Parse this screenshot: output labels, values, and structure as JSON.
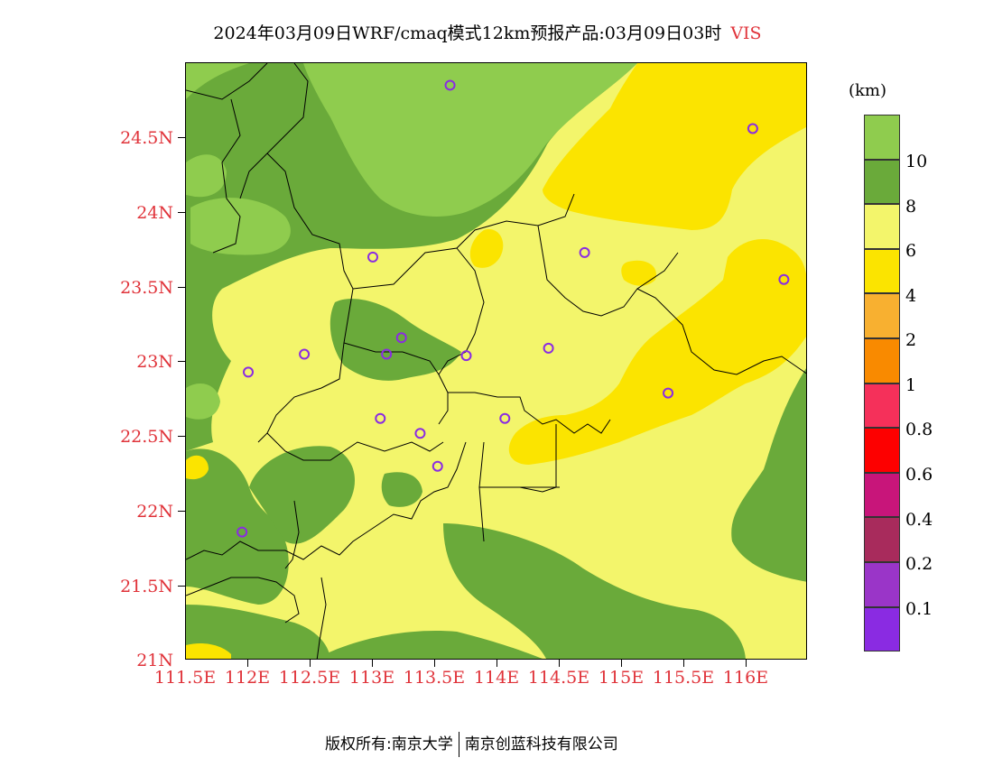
{
  "title": {
    "main": "2024年03月09日WRF/cmaq模式12km预报产品:03月09日03时",
    "variable": "VIS"
  },
  "axes": {
    "y_ticks": [
      "24.5N",
      "24N",
      "23.5N",
      "23N",
      "22.5N",
      "22N",
      "21.5N",
      "21N"
    ],
    "x_ticks": [
      "111.5E",
      "112E",
      "112.5E",
      "113E",
      "113.5E",
      "114E",
      "114.5E",
      "115E",
      "115.5E",
      "116E"
    ]
  },
  "legend": {
    "unit": "(km)",
    "labels": [
      "10",
      "8",
      "6",
      "4",
      "2",
      "1",
      "0.8",
      "0.6",
      "0.4",
      "0.2",
      "0.1"
    ],
    "colors": [
      "#8fcc4e",
      "#6aaa3a",
      "#f3f56b",
      "#fbe400",
      "#f8b030",
      "#f98a00",
      "#f5305a",
      "#fd0000",
      "#c8157a",
      "#a82b5c",
      "#9a35c8",
      "#8a2be2"
    ]
  },
  "stations": [
    {
      "lon": 113.62,
      "lat": 24.85
    },
    {
      "lon": 116.05,
      "lat": 24.56
    },
    {
      "lon": 113.0,
      "lat": 23.7
    },
    {
      "lon": 114.7,
      "lat": 23.73
    },
    {
      "lon": 116.3,
      "lat": 23.55
    },
    {
      "lon": 113.23,
      "lat": 23.16
    },
    {
      "lon": 112.45,
      "lat": 23.05
    },
    {
      "lon": 113.11,
      "lat": 23.05
    },
    {
      "lon": 113.75,
      "lat": 23.04
    },
    {
      "lon": 114.41,
      "lat": 23.09
    },
    {
      "lon": 112.0,
      "lat": 22.93
    },
    {
      "lon": 115.37,
      "lat": 22.79
    },
    {
      "lon": 113.06,
      "lat": 22.62
    },
    {
      "lon": 113.38,
      "lat": 22.52
    },
    {
      "lon": 114.06,
      "lat": 22.62
    },
    {
      "lon": 113.52,
      "lat": 22.3
    },
    {
      "lon": 111.95,
      "lat": 21.86
    }
  ],
  "footer": {
    "left": "版权所有:南京大学",
    "right": "南京创蓝科技有限公司"
  }
}
